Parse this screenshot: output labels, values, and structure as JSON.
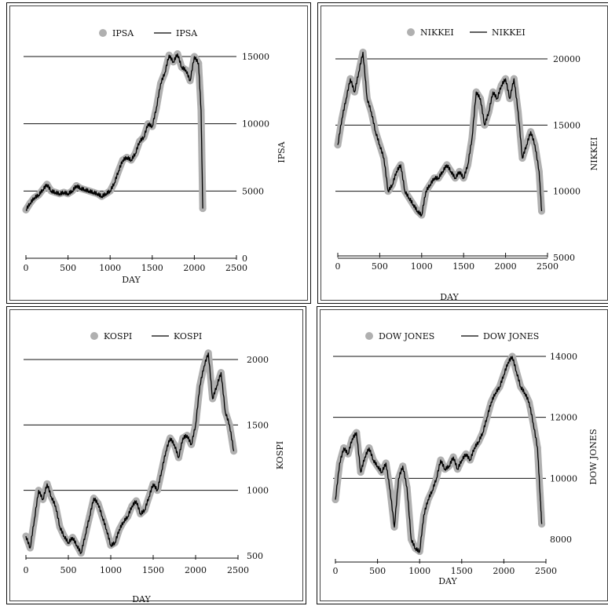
{
  "chart_data": [
    {
      "type": "line",
      "title": "",
      "xlabel": "DAY",
      "ylabel": "IPSA",
      "xlim": [
        0,
        2500
      ],
      "ylim": [
        0,
        15000
      ],
      "xticks": [
        0,
        500,
        1000,
        1500,
        2000,
        2500
      ],
      "yticks": [
        0,
        5000,
        10000,
        15000
      ],
      "grid": "horizontal",
      "legend": "top-center",
      "legend_entries": [
        "IPSA",
        "IPSA"
      ],
      "series": [
        {
          "name": "IPSA",
          "style": "markers",
          "color": "#b0b0b0",
          "x": [
            0,
            50,
            100,
            150,
            200,
            250,
            300,
            350,
            400,
            450,
            500,
            550,
            600,
            650,
            700,
            750,
            800,
            850,
            900,
            950,
            1000,
            1050,
            1100,
            1150,
            1200,
            1250,
            1300,
            1350,
            1400,
            1450,
            1500,
            1550,
            1600,
            1650,
            1700,
            1750,
            1800,
            1850,
            1900,
            1950,
            2000,
            2050,
            2080,
            2100
          ],
          "y": [
            3600,
            4100,
            4500,
            4700,
            5100,
            5500,
            5000,
            4900,
            4800,
            4900,
            4800,
            5000,
            5400,
            5200,
            5100,
            5000,
            4900,
            4800,
            4600,
            4800,
            5000,
            5600,
            6500,
            7300,
            7500,
            7300,
            7800,
            8700,
            9000,
            10000,
            9800,
            11200,
            13000,
            13800,
            15100,
            14600,
            15200,
            14200,
            14000,
            13200,
            15000,
            14500,
            11000,
            3700
          ]
        },
        {
          "name": "IPSA",
          "style": "line",
          "color": "#000000",
          "x": [
            0,
            50,
            100,
            150,
            200,
            250,
            300,
            350,
            400,
            450,
            500,
            550,
            600,
            650,
            700,
            750,
            800,
            850,
            900,
            950,
            1000,
            1050,
            1100,
            1150,
            1200,
            1250,
            1300,
            1350,
            1400,
            1450,
            1500,
            1550,
            1600,
            1650,
            1700,
            1750,
            1800,
            1850,
            1900,
            1950,
            2000,
            2050,
            2080,
            2100
          ],
          "y": [
            3600,
            4100,
            4500,
            4700,
            5100,
            5500,
            5000,
            4900,
            4800,
            4900,
            4800,
            5000,
            5400,
            5200,
            5100,
            5000,
            4900,
            4800,
            4600,
            4800,
            5000,
            5600,
            6500,
            7300,
            7500,
            7300,
            7800,
            8700,
            9000,
            10000,
            9800,
            11200,
            13000,
            13800,
            15100,
            14600,
            15200,
            14200,
            14000,
            13200,
            15000,
            14500,
            11000,
            3700
          ]
        }
      ]
    },
    {
      "type": "line",
      "title": "",
      "xlabel": "DAY",
      "ylabel": "NIKKEI",
      "xlim": [
        0,
        2500
      ],
      "ylim": [
        5000,
        20000
      ],
      "xticks": [
        0,
        500,
        1000,
        1500,
        2000,
        2500
      ],
      "yticks": [
        5000,
        10000,
        15000,
        20000
      ],
      "grid": "horizontal",
      "legend": "top-center",
      "legend_entries": [
        "NIKKEI",
        "NIKKEI"
      ],
      "series": [
        {
          "name": "NIKKEI",
          "style": "markers",
          "color": "#b0b0b0",
          "x": [
            0,
            50,
            100,
            150,
            200,
            250,
            300,
            350,
            400,
            450,
            500,
            550,
            600,
            650,
            700,
            750,
            800,
            850,
            900,
            950,
            1000,
            1050,
            1100,
            1150,
            1200,
            1250,
            1300,
            1350,
            1400,
            1450,
            1500,
            1550,
            1600,
            1650,
            1700,
            1750,
            1800,
            1850,
            1900,
            1950,
            2000,
            2050,
            2100,
            2150,
            2200,
            2250,
            2300,
            2350,
            2400,
            2430
          ],
          "y": [
            13500,
            15500,
            17000,
            18500,
            17500,
            19000,
            20500,
            17000,
            16000,
            14500,
            13500,
            12500,
            10000,
            10500,
            11500,
            12000,
            10000,
            9500,
            9000,
            8500,
            8200,
            10000,
            10500,
            11000,
            11000,
            11500,
            12000,
            11500,
            11000,
            11500,
            11000,
            12000,
            14000,
            17500,
            17000,
            15000,
            16000,
            17500,
            17000,
            18000,
            18500,
            17000,
            18500,
            16000,
            12500,
            13500,
            14500,
            13500,
            11500,
            8500
          ]
        },
        {
          "name": "NIKKEI",
          "style": "line",
          "color": "#000000",
          "x": [
            0,
            50,
            100,
            150,
            200,
            250,
            300,
            350,
            400,
            450,
            500,
            550,
            600,
            650,
            700,
            750,
            800,
            850,
            900,
            950,
            1000,
            1050,
            1100,
            1150,
            1200,
            1250,
            1300,
            1350,
            1400,
            1450,
            1500,
            1550,
            1600,
            1650,
            1700,
            1750,
            1800,
            1850,
            1900,
            1950,
            2000,
            2050,
            2100,
            2150,
            2200,
            2250,
            2300,
            2350,
            2400,
            2430
          ],
          "y": [
            13500,
            15500,
            17000,
            18500,
            17500,
            19000,
            20500,
            17000,
            16000,
            14500,
            13500,
            12500,
            10000,
            10500,
            11500,
            12000,
            10000,
            9500,
            9000,
            8500,
            8200,
            10000,
            10500,
            11000,
            11000,
            11500,
            12000,
            11500,
            11000,
            11500,
            11000,
            12000,
            14000,
            17500,
            17000,
            15000,
            16000,
            17500,
            17000,
            18000,
            18500,
            17000,
            18500,
            16000,
            12500,
            13500,
            14500,
            13500,
            11500,
            8500
          ]
        }
      ]
    },
    {
      "type": "line",
      "title": "",
      "xlabel": "DAY",
      "ylabel": "KOSPI",
      "xlim": [
        0,
        2500
      ],
      "ylim": [
        500,
        2000
      ],
      "xticks": [
        0,
        500,
        1000,
        1500,
        2000,
        2500
      ],
      "yticks": [
        500,
        1000,
        1500,
        2000
      ],
      "grid": "horizontal",
      "legend": "top-center",
      "legend_entries": [
        "KOSPI",
        "KOSPI"
      ],
      "series": [
        {
          "name": "KOSPI",
          "style": "markers",
          "color": "#b0b0b0",
          "x": [
            0,
            50,
            100,
            150,
            200,
            250,
            300,
            350,
            400,
            450,
            500,
            550,
            600,
            650,
            700,
            750,
            800,
            850,
            900,
            950,
            1000,
            1050,
            1100,
            1150,
            1200,
            1250,
            1300,
            1350,
            1400,
            1450,
            1500,
            1550,
            1600,
            1650,
            1700,
            1750,
            1800,
            1850,
            1900,
            1950,
            2000,
            2050,
            2100,
            2150,
            2200,
            2250,
            2300,
            2350,
            2400,
            2450
          ],
          "y": [
            650,
            560,
            780,
            1000,
            930,
            1050,
            950,
            880,
            720,
            650,
            600,
            640,
            580,
            520,
            660,
            800,
            940,
            900,
            800,
            700,
            580,
            600,
            700,
            760,
            800,
            880,
            920,
            820,
            850,
            950,
            1050,
            1000,
            1150,
            1300,
            1400,
            1350,
            1250,
            1400,
            1420,
            1350,
            1500,
            1800,
            1950,
            2050,
            1700,
            1800,
            1900,
            1600,
            1500,
            1300
          ]
        },
        {
          "name": "KOSPI",
          "style": "line",
          "color": "#000000",
          "x": [
            0,
            50,
            100,
            150,
            200,
            250,
            300,
            350,
            400,
            450,
            500,
            550,
            600,
            650,
            700,
            750,
            800,
            850,
            900,
            950,
            1000,
            1050,
            1100,
            1150,
            1200,
            1250,
            1300,
            1350,
            1400,
            1450,
            1500,
            1550,
            1600,
            1650,
            1700,
            1750,
            1800,
            1850,
            1900,
            1950,
            2000,
            2050,
            2100,
            2150,
            2200,
            2250,
            2300,
            2350,
            2400,
            2450
          ],
          "y": [
            650,
            560,
            780,
            1000,
            930,
            1050,
            950,
            880,
            720,
            650,
            600,
            640,
            580,
            520,
            660,
            800,
            940,
            900,
            800,
            700,
            580,
            600,
            700,
            760,
            800,
            880,
            920,
            820,
            850,
            950,
            1050,
            1000,
            1150,
            1300,
            1400,
            1350,
            1250,
            1400,
            1420,
            1350,
            1500,
            1800,
            1950,
            2050,
            1700,
            1800,
            1900,
            1600,
            1500,
            1300
          ]
        }
      ]
    },
    {
      "type": "line",
      "title": "",
      "xlabel": "DAY",
      "ylabel": "DOW JONES",
      "xlim": [
        0,
        2500
      ],
      "ylim": [
        8000,
        14000
      ],
      "xticks": [
        0,
        500,
        1000,
        1500,
        2000,
        2500
      ],
      "yticks": [
        8000,
        10000,
        12000,
        14000
      ],
      "grid": "horizontal",
      "legend": "top-center",
      "legend_entries": [
        "DOW JONES",
        "DOW JONES"
      ],
      "series": [
        {
          "name": "DOW JONES",
          "style": "markers",
          "color": "#b0b0b0",
          "x": [
            0,
            50,
            100,
            150,
            200,
            250,
            300,
            350,
            400,
            450,
            500,
            550,
            600,
            650,
            700,
            750,
            800,
            850,
            900,
            950,
            1000,
            1050,
            1100,
            1150,
            1200,
            1250,
            1300,
            1350,
            1400,
            1450,
            1500,
            1550,
            1600,
            1650,
            1700,
            1750,
            1800,
            1850,
            1900,
            1950,
            2000,
            2050,
            2100,
            2150,
            2200,
            2250,
            2300,
            2350,
            2400,
            2430,
            2450
          ],
          "y": [
            9300,
            10500,
            11000,
            10800,
            11300,
            11500,
            10200,
            10700,
            11000,
            10600,
            10400,
            10200,
            10500,
            9600,
            8400,
            10000,
            10400,
            9700,
            8000,
            7700,
            7600,
            8800,
            9300,
            9600,
            10000,
            10600,
            10300,
            10400,
            10700,
            10300,
            10600,
            10800,
            10600,
            11000,
            11200,
            11500,
            12000,
            12500,
            12800,
            13000,
            13400,
            13800,
            14000,
            13500,
            13000,
            12800,
            12500,
            11800,
            11000,
            9500,
            8500
          ]
        },
        {
          "name": "DOW JONES",
          "style": "line",
          "color": "#000000",
          "x": [
            0,
            50,
            100,
            150,
            200,
            250,
            300,
            350,
            400,
            450,
            500,
            550,
            600,
            650,
            700,
            750,
            800,
            850,
            900,
            950,
            1000,
            1050,
            1100,
            1150,
            1200,
            1250,
            1300,
            1350,
            1400,
            1450,
            1500,
            1550,
            1600,
            1650,
            1700,
            1750,
            1800,
            1850,
            1900,
            1950,
            2000,
            2050,
            2100,
            2150,
            2200,
            2250,
            2300,
            2350,
            2400,
            2430,
            2450
          ],
          "y": [
            9300,
            10500,
            11000,
            10800,
            11300,
            11500,
            10200,
            10700,
            11000,
            10600,
            10400,
            10200,
            10500,
            9600,
            8400,
            10000,
            10400,
            9700,
            8000,
            7700,
            7600,
            8800,
            9300,
            9600,
            10000,
            10600,
            10300,
            10400,
            10700,
            10300,
            10600,
            10800,
            10600,
            11000,
            11200,
            11500,
            12000,
            12500,
            12800,
            13000,
            13400,
            13800,
            14000,
            13500,
            13000,
            12800,
            12500,
            11800,
            11000,
            9500,
            8500
          ]
        }
      ]
    }
  ]
}
